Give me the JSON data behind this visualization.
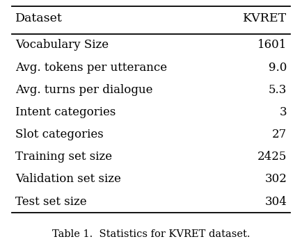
{
  "header": [
    "Dataset",
    "KVRET"
  ],
  "rows": [
    [
      "Vocabulary Size",
      "1601"
    ],
    [
      "Avg. tokens per utterance",
      "9.0"
    ],
    [
      "Avg. turns per dialogue",
      "5.3"
    ],
    [
      "Intent categories",
      "3"
    ],
    [
      "Slot categories",
      "27"
    ],
    [
      "Training set size",
      "2425"
    ],
    [
      "Validation set size",
      "302"
    ],
    [
      "Test set size",
      "304"
    ]
  ],
  "caption": "Table 1.  Statistics for KVRET dataset.",
  "bg_color": "#ffffff",
  "text_color": "#000000",
  "header_fontsize": 12.5,
  "row_fontsize": 12.0,
  "caption_fontsize": 10.5,
  "fig_width": 4.34,
  "fig_height": 3.54
}
